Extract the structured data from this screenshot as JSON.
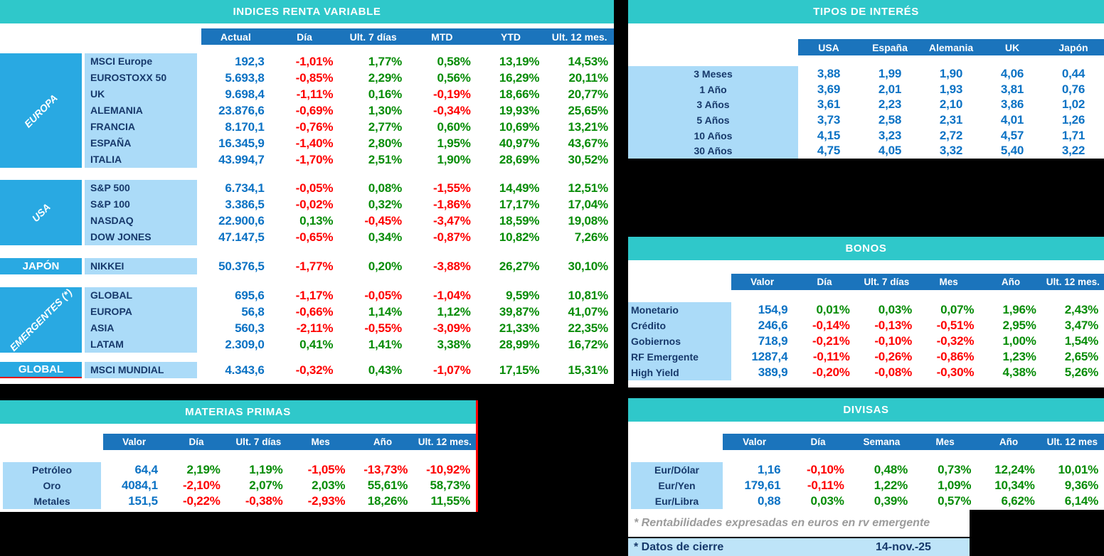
{
  "palette": {
    "title_teal": "#2fc8ca",
    "column_header_blue": "#1b74bc",
    "region_blue": "#29a9e2",
    "label_light_blue": "#abdbf8",
    "value_blue": "#0b72c4",
    "negative_red": "#fe0000",
    "positive_green": "#078c07",
    "footer_bar_blue": "#bee4f8",
    "note_gray": "#9b9b9b",
    "accent_red_border": "#ff0000",
    "background": "#000000"
  },
  "indices": {
    "title": "INDICES RENTA VARIABLE",
    "columns": [
      "Actual",
      "Día",
      "Ult. 7 días",
      "MTD",
      "YTD",
      "Ult. 12 mes."
    ],
    "groups": [
      {
        "region": "EUROPA",
        "rows": [
          {
            "name": "MSCI Europe",
            "values": [
              "192,3",
              "-1,01%",
              "1,77%",
              "0,58%",
              "13,19%",
              "14,53%"
            ]
          },
          {
            "name": "EUROSTOXX 50",
            "values": [
              "5.693,8",
              "-0,85%",
              "2,29%",
              "0,56%",
              "16,29%",
              "20,11%"
            ]
          },
          {
            "name": "UK",
            "values": [
              "9.698,4",
              "-1,11%",
              "0,16%",
              "-0,19%",
              "18,66%",
              "20,77%"
            ]
          },
          {
            "name": "ALEMANIA",
            "values": [
              "23.876,6",
              "-0,69%",
              "1,30%",
              "-0,34%",
              "19,93%",
              "25,65%"
            ]
          },
          {
            "name": "FRANCIA",
            "values": [
              "8.170,1",
              "-0,76%",
              "2,77%",
              "0,60%",
              "10,69%",
              "13,21%"
            ]
          },
          {
            "name": "ESPAÑA",
            "values": [
              "16.345,9",
              "-1,40%",
              "2,80%",
              "1,95%",
              "40,97%",
              "43,67%"
            ]
          },
          {
            "name": "ITALIA",
            "values": [
              "43.994,7",
              "-1,70%",
              "2,51%",
              "1,90%",
              "28,69%",
              "30,52%"
            ]
          }
        ]
      },
      {
        "region": "USA",
        "rows": [
          {
            "name": "S&P 500",
            "values": [
              "6.734,1",
              "-0,05%",
              "0,08%",
              "-1,55%",
              "14,49%",
              "12,51%"
            ]
          },
          {
            "name": "S&P 100",
            "values": [
              "3.386,5",
              "-0,02%",
              "0,32%",
              "-1,86%",
              "17,17%",
              "17,04%"
            ]
          },
          {
            "name": "NASDAQ",
            "values": [
              "22.900,6",
              "0,13%",
              "-0,45%",
              "-3,47%",
              "18,59%",
              "19,08%"
            ]
          },
          {
            "name": "DOW JONES",
            "values": [
              "47.147,5",
              "-0,65%",
              "0,34%",
              "-0,87%",
              "10,82%",
              "7,26%"
            ]
          }
        ]
      },
      {
        "region": "JAPÓN",
        "rows": [
          {
            "name": "NIKKEI",
            "values": [
              "50.376,5",
              "-1,77%",
              "0,20%",
              "-3,88%",
              "26,27%",
              "30,10%"
            ]
          }
        ]
      },
      {
        "region": "EMERGENTES (*)",
        "rows": [
          {
            "name": "GLOBAL",
            "values": [
              "695,6",
              "-1,17%",
              "-0,05%",
              "-1,04%",
              "9,59%",
              "10,81%"
            ]
          },
          {
            "name": "EUROPA",
            "values": [
              "56,8",
              "-0,66%",
              "1,14%",
              "1,12%",
              "39,87%",
              "41,07%"
            ]
          },
          {
            "name": "ASIA",
            "values": [
              "560,3",
              "-2,11%",
              "-0,55%",
              "-3,09%",
              "21,33%",
              "22,35%"
            ]
          },
          {
            "name": "LATAM",
            "values": [
              "2.309,0",
              "0,41%",
              "1,41%",
              "3,38%",
              "28,99%",
              "16,72%"
            ]
          }
        ]
      },
      {
        "region": "GLOBAL",
        "rows": [
          {
            "name": "MSCI MUNDIAL",
            "values": [
              "4.343,6",
              "-0,32%",
              "0,43%",
              "-1,07%",
              "17,15%",
              "15,31%"
            ]
          }
        ]
      }
    ]
  },
  "tipos": {
    "title": "TIPOS DE INTERÉS",
    "columns": [
      "USA",
      "España",
      "Alemania",
      "UK",
      "Japón"
    ],
    "rows": [
      {
        "name": "3 Meses",
        "values": [
          "3,88",
          "1,99",
          "1,90",
          "4,06",
          "0,44"
        ]
      },
      {
        "name": "1 Año",
        "values": [
          "3,69",
          "2,01",
          "1,93",
          "3,81",
          "0,76"
        ]
      },
      {
        "name": "3 Años",
        "values": [
          "3,61",
          "2,23",
          "2,10",
          "3,86",
          "1,02"
        ]
      },
      {
        "name": "5 Años",
        "values": [
          "3,73",
          "2,58",
          "2,31",
          "4,01",
          "1,26"
        ]
      },
      {
        "name": "10 Años",
        "values": [
          "4,15",
          "3,23",
          "2,72",
          "4,57",
          "1,71"
        ]
      },
      {
        "name": "30 Años",
        "values": [
          "4,75",
          "4,05",
          "3,32",
          "5,40",
          "3,22"
        ]
      }
    ]
  },
  "bonos": {
    "title": "BONOS",
    "columns": [
      "Valor",
      "Día",
      "Ult. 7 días",
      "Mes",
      "Año",
      "Ult. 12 mes."
    ],
    "rows": [
      {
        "name": "Monetario",
        "values": [
          "154,9",
          "0,01%",
          "0,03%",
          "0,07%",
          "1,96%",
          "2,43%"
        ]
      },
      {
        "name": "Crédito",
        "values": [
          "246,6",
          "-0,14%",
          "-0,13%",
          "-0,51%",
          "2,95%",
          "3,47%"
        ]
      },
      {
        "name": "Gobiernos",
        "values": [
          "718,9",
          "-0,21%",
          "-0,10%",
          "-0,32%",
          "1,00%",
          "1,54%"
        ]
      },
      {
        "name": "RF Emergente",
        "values": [
          "1287,4",
          "-0,11%",
          "-0,26%",
          "-0,86%",
          "1,23%",
          "2,65%"
        ]
      },
      {
        "name": "High Yield",
        "values": [
          "389,9",
          "-0,20%",
          "-0,08%",
          "-0,30%",
          "4,38%",
          "5,26%"
        ]
      }
    ]
  },
  "materias": {
    "title": "MATERIAS PRIMAS",
    "columns": [
      "Valor",
      "Día",
      "Ult. 7 días",
      "Mes",
      "Año",
      "Ult. 12 mes."
    ],
    "rows": [
      {
        "name": "Petróleo",
        "values": [
          "64,4",
          "2,19%",
          "1,19%",
          "-1,05%",
          "-13,73%",
          "-10,92%"
        ]
      },
      {
        "name": "Oro",
        "values": [
          "4084,1",
          "-2,10%",
          "2,07%",
          "2,03%",
          "55,61%",
          "58,73%"
        ]
      },
      {
        "name": "Metales",
        "values": [
          "151,5",
          "-0,22%",
          "-0,38%",
          "-2,93%",
          "18,26%",
          "11,55%"
        ]
      }
    ]
  },
  "divisas": {
    "title": "DIVISAS",
    "columns": [
      "Valor",
      "Día",
      "Semana",
      "Mes",
      "Año",
      "Ult. 12 mes"
    ],
    "rows": [
      {
        "name": "Eur/Dólar",
        "values": [
          "1,16",
          "-0,10%",
          "0,48%",
          "0,73%",
          "12,24%",
          "10,01%"
        ]
      },
      {
        "name": "Eur/Yen",
        "values": [
          "179,61",
          "-0,11%",
          "1,22%",
          "1,09%",
          "10,34%",
          "9,36%"
        ]
      },
      {
        "name": "Eur/Libra",
        "values": [
          "0,88",
          "0,03%",
          "0,39%",
          "0,57%",
          "6,62%",
          "6,14%"
        ]
      }
    ]
  },
  "footnotes": {
    "emergente": "* Rentabilidades expresadas en euros en rv emergente",
    "cierre_label": "* Datos de cierre",
    "cierre_date": "14-nov.-25"
  }
}
